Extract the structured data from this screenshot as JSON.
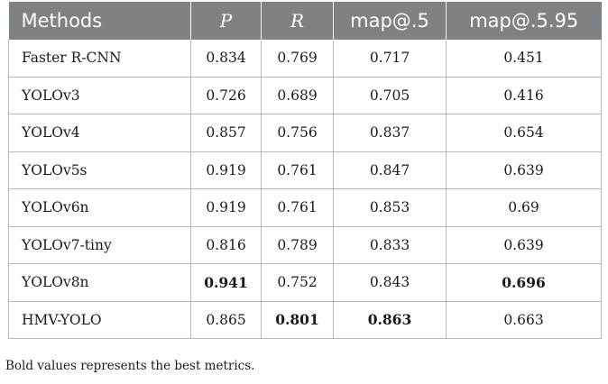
{
  "table": {
    "headers": [
      "Methods",
      "P",
      "R",
      "map@.5",
      "map@.5.95"
    ],
    "rows": [
      {
        "method": "Faster R-CNN",
        "p": "0.834",
        "r": "0.769",
        "map50": "0.717",
        "map5095": "0.451"
      },
      {
        "method": "YOLOv3",
        "p": "0.726",
        "r": "0.689",
        "map50": "0.705",
        "map5095": "0.416"
      },
      {
        "method": "YOLOv4",
        "p": "0.857",
        "r": "0.756",
        "map50": "0.837",
        "map5095": "0.654"
      },
      {
        "method": "YOLOv5s",
        "p": "0.919",
        "r": "0.761",
        "map50": "0.847",
        "map5095": "0.639"
      },
      {
        "method": "YOLOv6n",
        "p": "0.919",
        "r": "0.761",
        "map50": "0.853",
        "map5095": "0.69"
      },
      {
        "method": "YOLOv7-tiny",
        "p": "0.816",
        "r": "0.789",
        "map50": "0.833",
        "map5095": "0.639"
      },
      {
        "method": "YOLOv8n",
        "p": "0.941",
        "r": "0.752",
        "map50": "0.843",
        "map5095": "0.696"
      },
      {
        "method": "HMV-YOLO",
        "p": "0.865",
        "r": "0.801",
        "map50": "0.863",
        "map5095": "0.663"
      }
    ],
    "bold_cells": [
      {
        "row": 6,
        "col": "p"
      },
      {
        "row": 6,
        "col": "map5095"
      },
      {
        "row": 7,
        "col": "r"
      },
      {
        "row": 7,
        "col": "map50"
      }
    ],
    "header_bg_color": "#7f8285",
    "footnote": "Bold values represents the best metrics."
  }
}
